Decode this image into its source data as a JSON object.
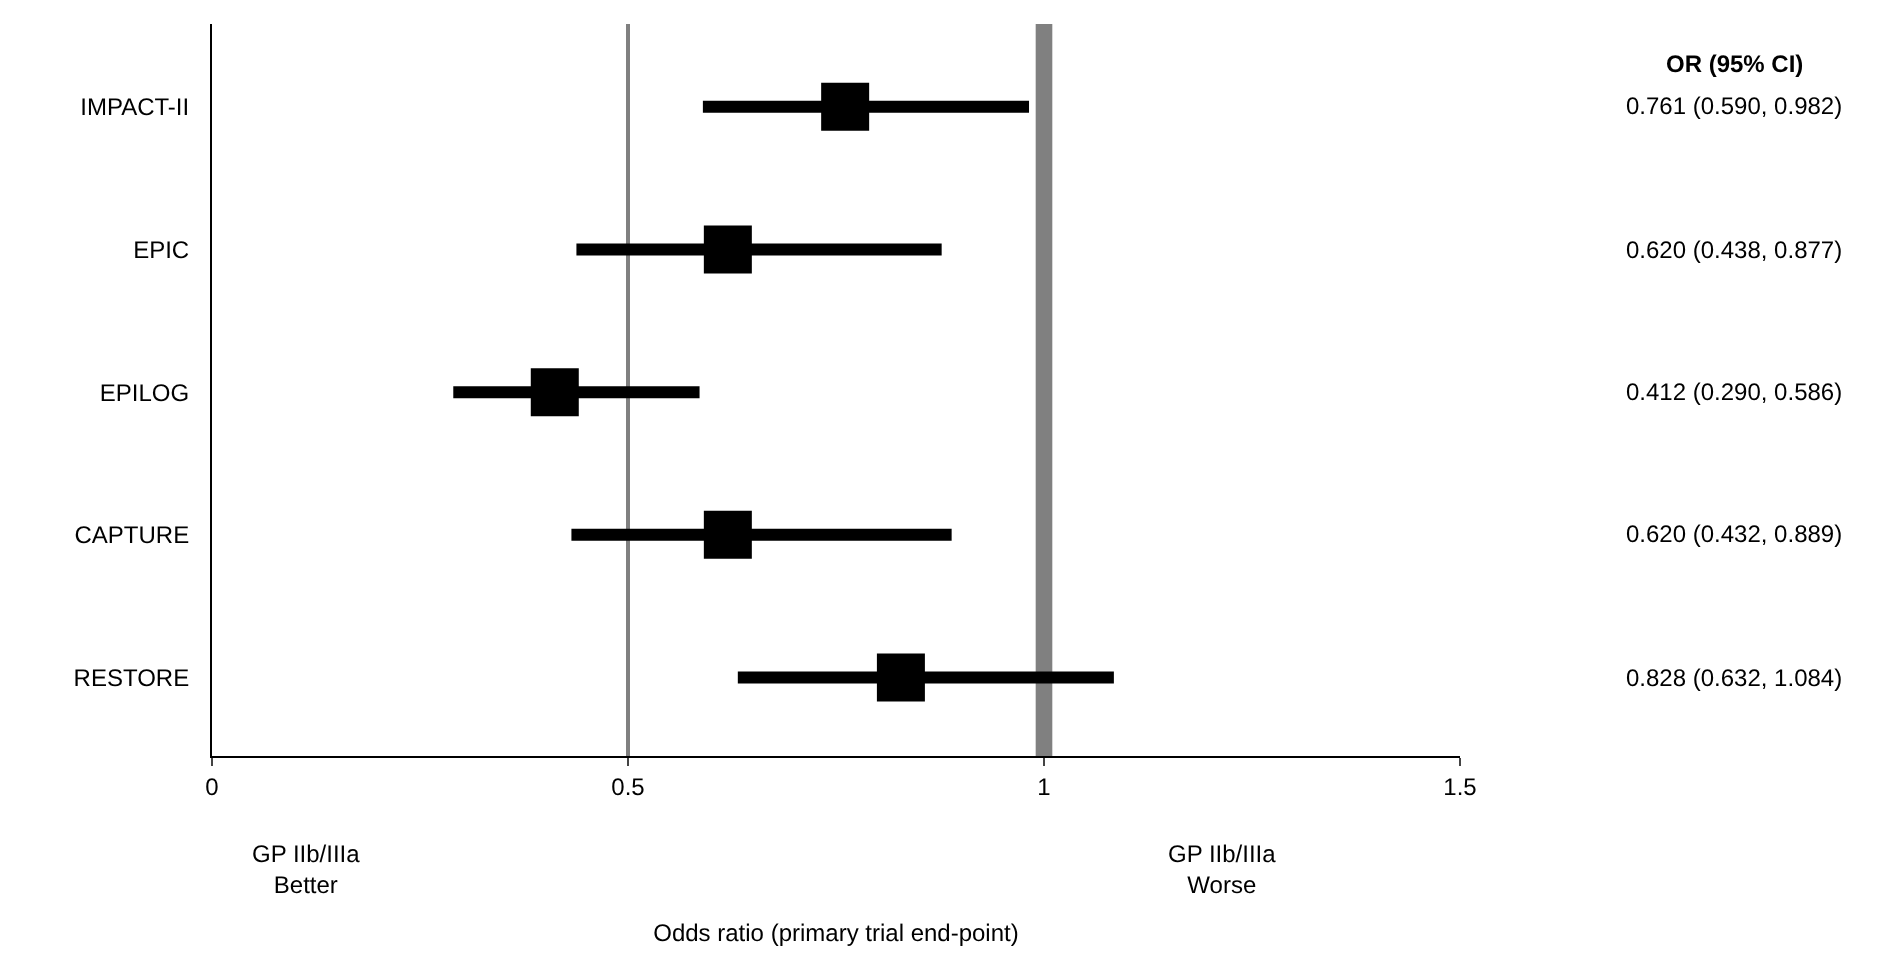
{
  "chart_data": {
    "type": "scatter",
    "orientation": "horizontal",
    "marker": "square",
    "xlabel": "Odds ratio (primary trial end-point)",
    "categories": [
      "IMPACT-II",
      "EPIC",
      "EPILOG",
      "CAPTURE",
      "RESTORE"
    ],
    "series": [
      {
        "color": "#000000",
        "values": [
          0.761,
          0.62,
          0.412,
          0.62,
          0.828
        ],
        "errors": [
          [
            0.59,
            0.982
          ],
          [
            0.438,
            0.877
          ],
          [
            0.29,
            0.586
          ],
          [
            0.432,
            0.889
          ],
          [
            0.632,
            1.084
          ]
        ],
        "value_labels": [
          "0.761 (0.590, 0.982)",
          "0.620 (0.438, 0.877)",
          "0.412 (0.290, 0.586)",
          "0.620 (0.432, 0.889)",
          "0.828 (0.632, 1.084)"
        ]
      }
    ],
    "xlim": [
      0,
      1.5
    ],
    "xticks": [
      0,
      0.5,
      1,
      1.5
    ],
    "grid": false,
    "ref_lines": [
      {
        "axis": "x",
        "value": 0.5,
        "color": "#808080"
      }
    ],
    "bands": [
      {
        "axis": "x",
        "from": 0.99,
        "to": 1.01,
        "color": "#808080"
      }
    ],
    "annotations": [
      "GP IIb/IIIa\nBetter",
      "GP IIb/IIIa\nWorse",
      "OR (95% CI)"
    ]
  }
}
